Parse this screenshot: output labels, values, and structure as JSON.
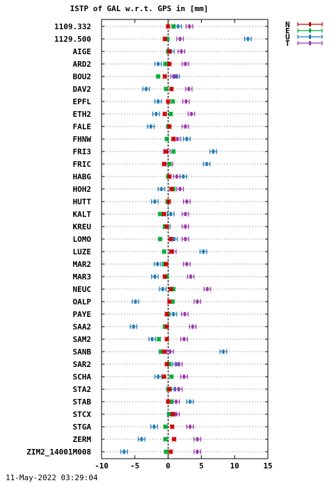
{
  "chart_data": {
    "type": "scatter",
    "title": "ISTP of GAL w.r.t. GPS in [mm]",
    "xlim": [
      -10,
      15
    ],
    "xticks": [
      "-10",
      "-5",
      "0",
      "5",
      "10",
      "15"
    ],
    "legend": {
      "placement": "top-right"
    },
    "grid": "horizontal dotted",
    "categories": [
      "1109.332",
      "1129.500",
      "AIGE",
      "ARD2",
      "BOU2",
      "DAV2",
      "EPFL",
      "ETH2",
      "FALE",
      "FHNW",
      "FRI3",
      "FRIC",
      "HABG",
      "HOH2",
      "HUTT",
      "KALT",
      "KREU",
      "LOMO",
      "LUZE",
      "MAR2",
      "MAR3",
      "NEUC",
      "OALP",
      "PAYE",
      "SAA2",
      "SAM2",
      "SANB",
      "SAR2",
      "SCHA",
      "STA2",
      "STAB",
      "STCX",
      "STGA",
      "ZERM",
      "ZIM2_14001M008"
    ],
    "series": [
      {
        "name": "N",
        "color": "#cc0000",
        "err": 0.25,
        "values": [
          0.0,
          -0.5,
          0.2,
          0.2,
          -0.5,
          0.5,
          0.0,
          -0.5,
          0.2,
          0.8,
          -0.3,
          -0.6,
          0.2,
          0.5,
          0.1,
          -0.6,
          -0.2,
          0.4,
          0.5,
          -0.3,
          -0.5,
          0.4,
          0.2,
          -0.2,
          -0.2,
          -0.2,
          -0.6,
          -0.2,
          -0.6,
          0.2,
          0.0,
          0.7,
          0.6,
          0.9,
          0.4
        ]
      },
      {
        "name": "E",
        "color": "#00aa33",
        "err": 0.25,
        "values": [
          0.8,
          -0.1,
          0.0,
          -0.4,
          -1.5,
          -0.3,
          0.7,
          0.4,
          0.0,
          -0.2,
          0.8,
          0.2,
          0.0,
          0.8,
          -0.1,
          -1.2,
          -0.5,
          -1.2,
          -0.6,
          -0.6,
          -0.2,
          0.8,
          0.7,
          0.0,
          -0.5,
          -1.4,
          -1.1,
          0.2,
          0.5,
          0.0,
          0.5,
          0.2,
          -0.4,
          -0.4,
          -0.3
        ]
      },
      {
        "name": "U",
        "color": "#1f78b4",
        "err": 0.5,
        "values": [
          1.5,
          12.0,
          0.4,
          -1.5,
          1.2,
          -3.3,
          -1.5,
          -1.8,
          -2.6,
          2.8,
          6.8,
          5.8,
          2.3,
          -1.0,
          -2.0,
          0.4,
          -0.2,
          0.9,
          5.3,
          -1.6,
          -2.0,
          -0.8,
          -4.9,
          0.8,
          -5.2,
          -2.4,
          8.3,
          1.2,
          -1.5,
          1.0,
          3.3,
          0.4,
          -2.1,
          -4.0,
          -6.6
        ]
      },
      {
        "name": "T",
        "color": "#9933aa",
        "err": 0.5,
        "values": [
          3.2,
          1.8,
          2.0,
          2.6,
          0.9,
          3.1,
          2.7,
          3.5,
          2.6,
          1.4,
          -0.2,
          0.2,
          1.3,
          1.8,
          2.8,
          2.6,
          2.6,
          2.6,
          0.7,
          2.8,
          3.4,
          5.9,
          4.4,
          2.5,
          3.7,
          2.4,
          0.3,
          1.6,
          2.4,
          1.6,
          1.2,
          1.2,
          3.3,
          4.4,
          4.4
        ]
      }
    ]
  },
  "footer": {
    "timestamp": "11-May-2022 03:29:04"
  }
}
